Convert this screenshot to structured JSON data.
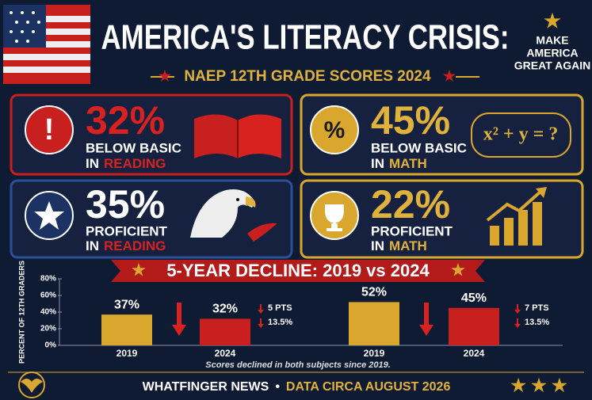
{
  "header": {
    "title": "AMERICA'S LITERACY CRISIS:",
    "subtitle": "NAEP 12TH GRADE SCORES 2024",
    "badge": [
      "MAKE",
      "AMERICA",
      "GREAT AGAIN"
    ]
  },
  "cards": [
    {
      "icon": "!",
      "stat": "32%",
      "line1": "BELOW BASIC",
      "prefix": "IN",
      "subject": "READING"
    },
    {
      "icon": "%",
      "stat": "45%",
      "line1": "BELOW BASIC",
      "prefix": "IN",
      "subject": "MATH",
      "equation": "x² + y = ?"
    },
    {
      "stat": "35%",
      "line1": "PROFICIENT",
      "prefix": "IN",
      "subject": "READING"
    },
    {
      "stat": "22%",
      "line1": "PROFICIENT",
      "prefix": "IN",
      "subject": "MATH"
    }
  ],
  "chart_data": {
    "type": "bar",
    "title": "5-YEAR DECLINE: 2019 vs 2024",
    "y_label": "PERCENT OF 12TH GRADERS",
    "categories": [
      "2019",
      "2024",
      "2019",
      "2024"
    ],
    "values": [
      37,
      32,
      52,
      45
    ],
    "value_labels": [
      "37%",
      "32%",
      "52%",
      "45%"
    ],
    "colors": [
      "#d9a72e",
      "#c81f1f",
      "#d9a72e",
      "#c81f1f"
    ],
    "ylim": [
      0,
      80
    ],
    "yticks": [
      {
        "value": 0,
        "label": "0%"
      },
      {
        "value": 20,
        "label": "20%"
      },
      {
        "value": 40,
        "label": "40%"
      },
      {
        "value": 60,
        "label": "60%"
      },
      {
        "value": 80,
        "label": "80%"
      }
    ],
    "annotations": [
      {
        "points": "5 PTS",
        "percent": "13.5%"
      },
      {
        "points": "7 PTS",
        "percent": "13.5%"
      }
    ],
    "note": "Scores declined in both subjects since 2019."
  },
  "footer": {
    "source": "WHATFINGER NEWS",
    "separator": "•",
    "date": "DATA CIRCA AUGUST 2026"
  }
}
